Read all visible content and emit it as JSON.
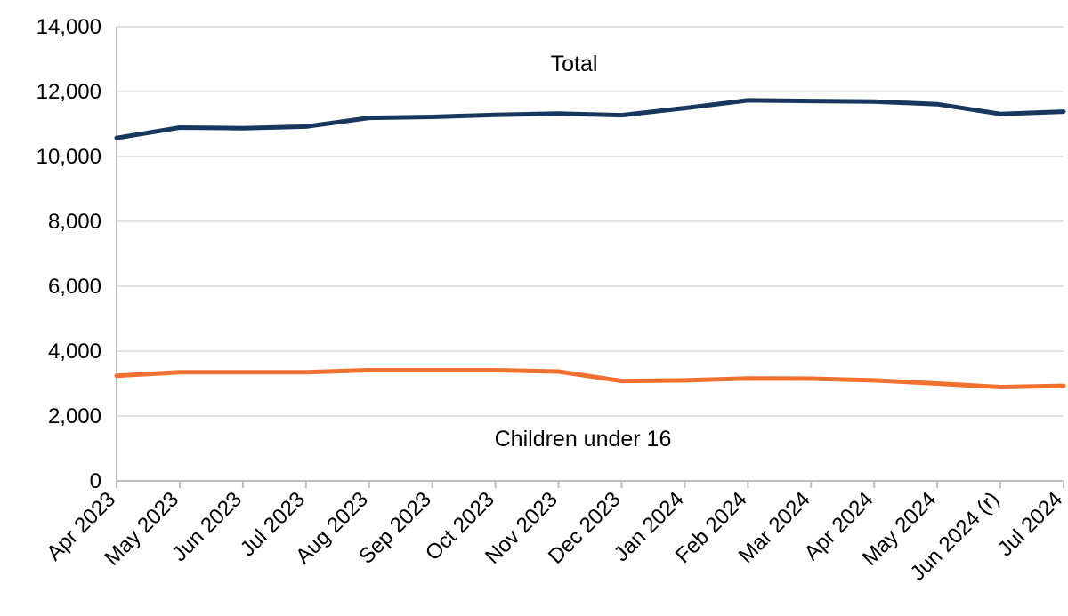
{
  "chart_data": {
    "type": "line",
    "title": "",
    "xlabel": "",
    "ylabel": "",
    "categories": [
      "Apr 2023",
      "May 2023",
      "Jun 2023",
      "Jul 2023",
      "Aug 2023",
      "Sep 2023",
      "Oct 2023",
      "Nov 2023",
      "Dec 2023",
      "Jan 2024",
      "Feb 2024",
      "Mar 2024",
      "Apr 2024",
      "May 2024",
      "Jun 2024 (r)",
      "Jul 2024"
    ],
    "ylim": [
      0,
      14000
    ],
    "yticks": [
      0,
      2000,
      4000,
      6000,
      8000,
      10000,
      12000,
      14000
    ],
    "ytick_labels": [
      "0",
      "2,000",
      "4,000",
      "6,000",
      "8,000",
      "10,000",
      "12,000",
      "14,000"
    ],
    "grid": true,
    "legend": "none",
    "series": [
      {
        "name": "Total",
        "color": "#17375e",
        "values": [
          10570,
          10890,
          10870,
          10920,
          11190,
          11220,
          11280,
          11320,
          11270,
          11490,
          11730,
          11710,
          11690,
          11610,
          11310,
          11380
        ]
      },
      {
        "name": "Children under 16",
        "color": "#f07030",
        "values": [
          3240,
          3350,
          3350,
          3350,
          3410,
          3410,
          3410,
          3370,
          3080,
          3100,
          3160,
          3150,
          3100,
          3000,
          2890,
          2930
        ]
      }
    ]
  }
}
